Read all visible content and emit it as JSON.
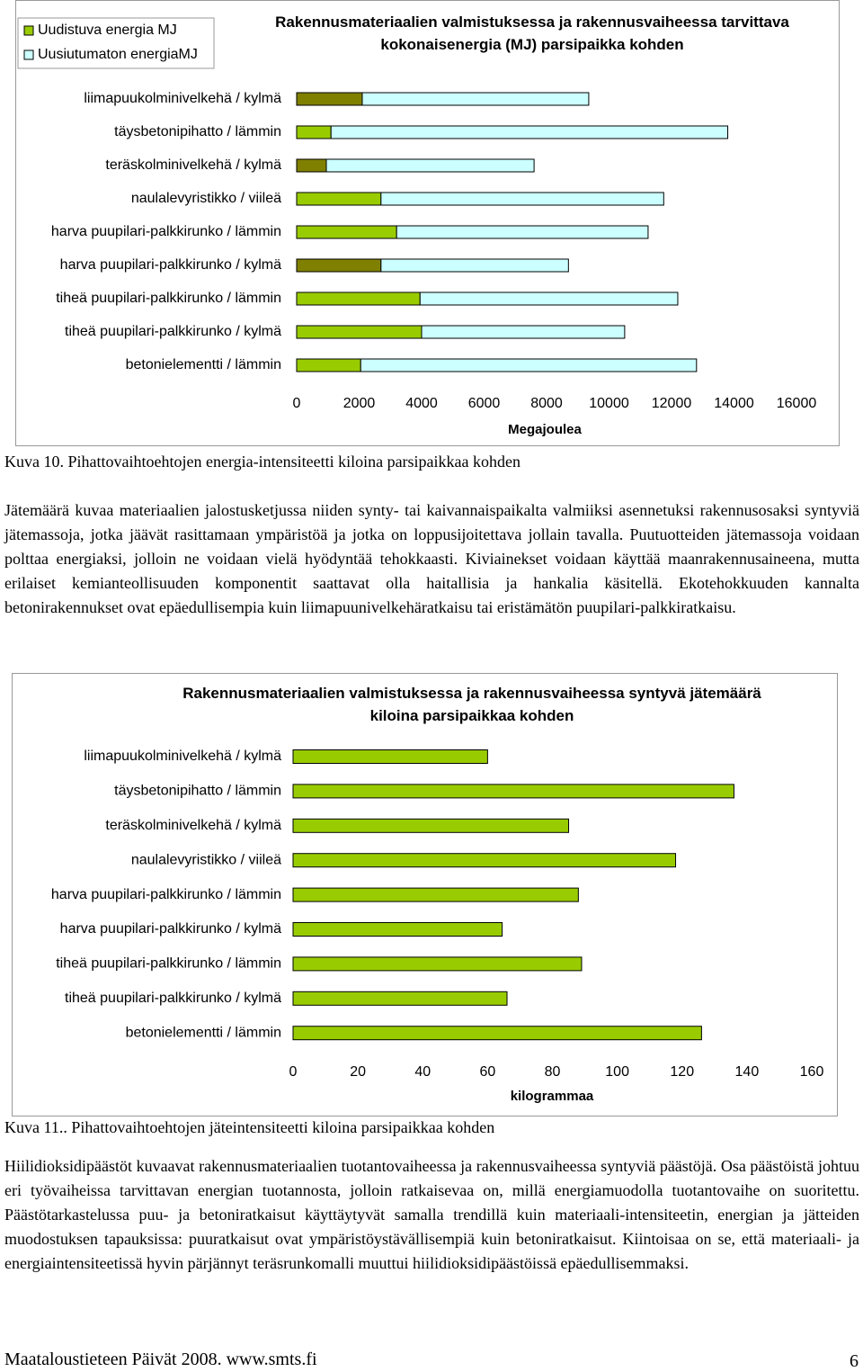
{
  "chart_data": [
    {
      "type": "bar",
      "orientation": "horizontal",
      "stacked": true,
      "title": "Rakennusmateriaalien valmistuksessa ja rakennusvaiheessa tarvittava kokonaisenergia (MJ) parsipaikka kohden",
      "categories": [
        "liimapuukolminivelkehä / kylmä",
        "täysbetonipihatto / lämmin",
        "teräskolminivelkehä / kylmä",
        "naulalevyristikko / viileä",
        "harva puupilari-palkkirunko / lämmin",
        "harva puupilari-palkkirunko / kylmä",
        "tiheä puupilari-palkkirunko / lämmin",
        "tiheä puupilari-palkkirunko / kylmä",
        "betonielementti / lämmin"
      ],
      "series": [
        {
          "name": "Uudistuva energia MJ",
          "color": "#99cc00",
          "colors": [
            "#808000",
            "#99cc00",
            "#808000",
            "#99cc00",
            "#99cc00",
            "#808000",
            "#99cc00",
            "#99cc00",
            "#99cc00"
          ],
          "values": [
            2100,
            1100,
            950,
            2700,
            3200,
            2700,
            3950,
            4000,
            2050
          ]
        },
        {
          "name": "Uusiutumaton energiaMJ",
          "color": "#ccffff",
          "values": [
            7250,
            12700,
            6650,
            9050,
            8050,
            6000,
            8250,
            6500,
            10750
          ]
        }
      ],
      "xlabel": "Megajoulea",
      "xlim": [
        0,
        16000
      ],
      "xticks": [
        0,
        2000,
        4000,
        6000,
        8000,
        10000,
        12000,
        14000,
        16000
      ],
      "legend": "top-left",
      "grid": false
    },
    {
      "type": "bar",
      "orientation": "horizontal",
      "stacked": false,
      "title": "Rakennusmateriaalien valmistuksessa ja rakennusvaiheessa syntyvä jätemäärä kiloina parsipaikkaa kohden",
      "categories": [
        "liimapuukolminivelkehä / kylmä",
        "täysbetonipihatto / lämmin",
        "teräskolminivelkehä / kylmä",
        "naulalevyristikko / viileä",
        "harva puupilari-palkkirunko / lämmin",
        "harva puupilari-palkkirunko / kylmä",
        "tiheä puupilari-palkkirunko / lämmin",
        "tiheä puupilari-palkkirunko / kylmä",
        "betonielementti / lämmin"
      ],
      "values": [
        60,
        136,
        85,
        118,
        88,
        64.5,
        89,
        66,
        126
      ],
      "color": "#99cc00",
      "xlabel": "kilogrammaa",
      "xlim": [
        0,
        160
      ],
      "xticks": [
        0,
        20,
        40,
        60,
        80,
        100,
        120,
        140,
        160
      ],
      "grid": false
    }
  ],
  "captions": [
    "Kuva 10. Pihattovaihtoehtojen energia-intensiteetti kiloina parsipaikkaa kohden",
    "Kuva 11.. Pihattovaihtoehtojen jäteintensiteetti kiloina parsipaikkaa kohden"
  ],
  "paragraphs": [
    "Jätemäärä kuvaa materiaalien jalostusketjussa niiden synty- tai kaivannaispaikalta valmiiksi asennetuksi rakennusosaksi syntyviä jätemassoja, jotka jäävät rasittamaan ympäristöä ja jotka on loppusijoitettava jollain tavalla. Puutuotteiden jätemassoja voidaan polttaa energiaksi, jolloin ne voidaan vielä hyödyntää tehokkaasti. Kiviainekset voidaan käyttää maanrakennusaineena, mutta erilaiset kemianteollisuuden komponentit saattavat olla haitallisia ja hankalia käsitellä. Ekotehokkuuden kannalta betonirakennukset ovat epäedullisempia kuin liimapuunivelkehäratkaisu tai eristämätön puupilari-palkkiratkaisu.",
    "Hiilidioksidipäästöt kuvaavat rakennusmateriaalien tuotantovaiheessa ja rakennusvaiheessa syntyviä päästöjä. Osa päästöistä johtuu eri työvaiheissa tarvittavan energian tuotannosta, jolloin ratkaisevaa on, millä energiamuodolla tuotantovaihe on suoritettu. Päästötarkastelussa puu- ja betoniratkaisut käyttäytyvät samalla trendillä kuin materiaali-intensiteetin, energian ja jätteiden muodostuksen tapauksissa: puuratkaisut ovat ympäristöystävällisempiä kuin betoniratkaisut. Kiintoisaa on se, että materiaali- ja energiaintensiteetissä hyvin pärjännyt teräsrunkomalli muuttui hiilidioksidipäästöissä epäedullisemmaksi."
  ],
  "footer": {
    "source": "Maataloustieteen Päivät 2008. www.smts.fi",
    "page": "6"
  }
}
